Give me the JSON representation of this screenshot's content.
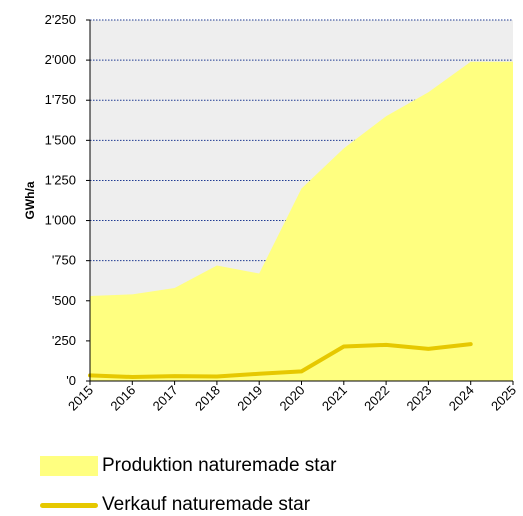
{
  "chart_data": {
    "type": "area",
    "ylabel": "GWh/a",
    "x": [
      "2015",
      "2016",
      "2017",
      "2018",
      "2019",
      "2020",
      "2021",
      "2022",
      "2023",
      "2024",
      "2025"
    ],
    "y_ticks": [
      "'0",
      "'250",
      "'500",
      "'750",
      "1'000",
      "1'250",
      "1'500",
      "1'750",
      "2'000",
      "2'250"
    ],
    "ylim": [
      0,
      2250
    ],
    "grid": true,
    "series": [
      {
        "name": "Produktion naturemade star",
        "kind": "area",
        "color": "#ffff80",
        "values": [
          530,
          540,
          580,
          720,
          670,
          1200,
          1450,
          1650,
          1800,
          1990,
          1990
        ]
      },
      {
        "name": "Verkauf naturemade star",
        "kind": "line",
        "color": "#e6c800",
        "values": [
          35,
          25,
          30,
          28,
          45,
          60,
          215,
          225,
          200,
          230,
          null
        ]
      }
    ],
    "plot_background": "#eeeeee",
    "grid_color": "#1f3a93",
    "legend_position": "bottom"
  }
}
